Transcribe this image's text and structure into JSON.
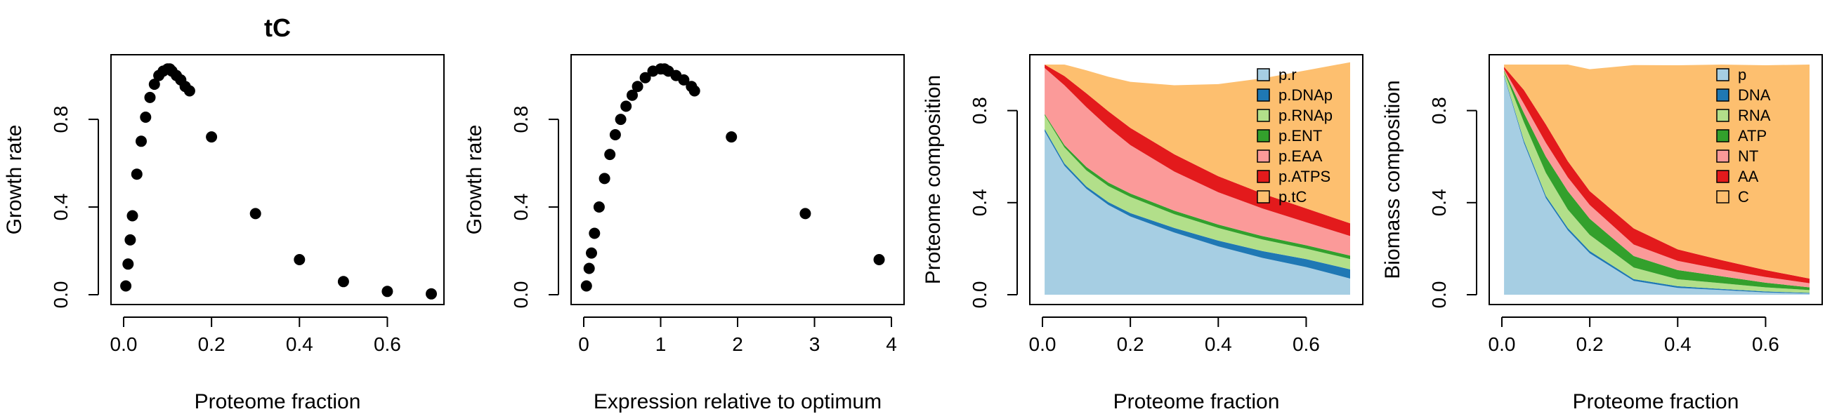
{
  "colors": {
    "points": "#000000",
    "axis": "#000000",
    "pal": [
      "#A6CEE3",
      "#1F78B4",
      "#B2DF8A",
      "#33A02C",
      "#FB9A99",
      "#E31A1C",
      "#FDBF6F"
    ]
  },
  "chart_data": [
    {
      "type": "scatter",
      "title": "tC",
      "xlabel": "Proteome fraction",
      "ylabel": "Growth rate",
      "xlim": [
        0,
        0.7
      ],
      "ylim": [
        0,
        1.05
      ],
      "xticks": [
        0,
        0.2,
        0.4,
        0.6
      ],
      "xtick_labels": [
        "0.0",
        "0.2",
        "0.4",
        "0.6"
      ],
      "yticks": [
        0,
        0.4,
        0.8
      ],
      "ytick_labels": [
        "0.0",
        "0.4",
        "0.8"
      ],
      "grid": false,
      "curve_x": [
        0.005,
        0.01,
        0.015,
        0.02,
        0.03,
        0.04,
        0.05,
        0.06,
        0.07,
        0.08,
        0.09,
        0.1,
        0.105,
        0.11,
        0.12,
        0.13,
        0.14,
        0.15
      ],
      "curve_y": [
        0.04,
        0.14,
        0.25,
        0.36,
        0.55,
        0.7,
        0.81,
        0.9,
        0.96,
        1.0,
        1.02,
        1.03,
        1.03,
        1.02,
        1.0,
        0.98,
        0.95,
        0.93
      ],
      "x": [
        0.2,
        0.3,
        0.4,
        0.5,
        0.6,
        0.7
      ],
      "y": [
        0.72,
        0.37,
        0.16,
        0.06,
        0.015,
        0.004
      ]
    },
    {
      "type": "scatter",
      "title": "",
      "xlabel": "Expression relative to optimum",
      "ylabel": "Growth rate",
      "xlim": [
        0,
        4
      ],
      "ylim": [
        0,
        1.05
      ],
      "xticks": [
        0,
        1,
        2,
        3,
        4
      ],
      "xtick_labels": [
        "0",
        "1",
        "2",
        "3",
        "4"
      ],
      "yticks": [
        0,
        0.4,
        0.8
      ],
      "ytick_labels": [
        "0.0",
        "0.4",
        "0.8"
      ],
      "grid": false,
      "curve_x": [
        0.035,
        0.07,
        0.1,
        0.14,
        0.2,
        0.27,
        0.34,
        0.41,
        0.48,
        0.55,
        0.63,
        0.7,
        0.8,
        0.9,
        1.0,
        1.05,
        1.1,
        1.2,
        1.3,
        1.4,
        1.44
      ],
      "curve_y": [
        0.04,
        0.12,
        0.19,
        0.28,
        0.4,
        0.53,
        0.64,
        0.73,
        0.8,
        0.86,
        0.91,
        0.95,
        0.99,
        1.02,
        1.03,
        1.03,
        1.02,
        1.0,
        0.98,
        0.95,
        0.93
      ],
      "x": [
        1.92,
        2.88,
        3.84
      ],
      "y": [
        0.72,
        0.37,
        0.16
      ]
    },
    {
      "type": "area",
      "title": "",
      "xlabel": "Proteome fraction",
      "ylabel": "Proteome composition",
      "xlim": [
        0,
        0.7
      ],
      "ylim": [
        0,
        1
      ],
      "xticks": [
        0,
        0.2,
        0.4,
        0.6
      ],
      "xtick_labels": [
        "0.0",
        "0.2",
        "0.4",
        "0.6"
      ],
      "yticks": [
        0,
        0.4,
        0.8
      ],
      "ytick_labels": [
        "0.0",
        "0.4",
        "0.8"
      ],
      "grid": false,
      "legend_position": "top-right",
      "x": [
        0.005,
        0.05,
        0.1,
        0.15,
        0.2,
        0.3,
        0.4,
        0.5,
        0.6,
        0.7
      ],
      "series": [
        {
          "name": "p.r",
          "values": [
            0.71,
            0.56,
            0.46,
            0.39,
            0.34,
            0.27,
            0.21,
            0.16,
            0.12,
            0.07
          ]
        },
        {
          "name": "p.DNAp",
          "values": [
            0.01,
            0.01,
            0.01,
            0.012,
            0.015,
            0.02,
            0.025,
            0.03,
            0.035,
            0.04
          ]
        },
        {
          "name": "p.RNAp",
          "values": [
            0.06,
            0.07,
            0.07,
            0.07,
            0.07,
            0.06,
            0.055,
            0.05,
            0.045,
            0.045
          ]
        },
        {
          "name": "p.ENT",
          "values": [
            0.005,
            0.01,
            0.015,
            0.015,
            0.015,
            0.015,
            0.015,
            0.015,
            0.015,
            0.015
          ]
        },
        {
          "name": "p.EAA",
          "values": [
            0.2,
            0.26,
            0.26,
            0.24,
            0.21,
            0.17,
            0.14,
            0.12,
            0.1,
            0.085
          ]
        },
        {
          "name": "p.ATPS",
          "values": [
            0.015,
            0.04,
            0.06,
            0.07,
            0.075,
            0.075,
            0.07,
            0.065,
            0.06,
            0.055
          ]
        },
        {
          "name": "p.tC",
          "values": [
            0.0,
            0.05,
            0.1,
            0.15,
            0.2,
            0.3,
            0.4,
            0.5,
            0.6,
            0.7
          ]
        }
      ]
    },
    {
      "type": "area",
      "title": "",
      "xlabel": "Proteome fraction",
      "ylabel": "Biomass composition",
      "xlim": [
        0,
        0.7
      ],
      "ylim": [
        0,
        1
      ],
      "xticks": [
        0,
        0.2,
        0.4,
        0.6
      ],
      "xtick_labels": [
        "0.0",
        "0.2",
        "0.4",
        "0.6"
      ],
      "yticks": [
        0,
        0.4,
        0.8
      ],
      "ytick_labels": [
        "0.0",
        "0.4",
        "0.8"
      ],
      "grid": false,
      "legend_position": "top-right",
      "x": [
        0.005,
        0.05,
        0.1,
        0.15,
        0.2,
        0.3,
        0.4,
        0.5,
        0.6,
        0.7
      ],
      "series": [
        {
          "name": "p",
          "values": [
            0.95,
            0.66,
            0.42,
            0.28,
            0.18,
            0.06,
            0.03,
            0.02,
            0.01,
            0.005
          ]
        },
        {
          "name": "DNA",
          "values": [
            0.005,
            0.01,
            0.01,
            0.01,
            0.01,
            0.008,
            0.007,
            0.005,
            0.004,
            0.003
          ]
        },
        {
          "name": "RNA",
          "values": [
            0.015,
            0.08,
            0.1,
            0.08,
            0.07,
            0.05,
            0.03,
            0.025,
            0.018,
            0.012
          ]
        },
        {
          "name": "ATP",
          "values": [
            0.005,
            0.04,
            0.07,
            0.08,
            0.07,
            0.05,
            0.04,
            0.03,
            0.02,
            0.012
          ]
        },
        {
          "name": "NT",
          "values": [
            0.005,
            0.04,
            0.06,
            0.06,
            0.06,
            0.05,
            0.04,
            0.03,
            0.025,
            0.018
          ]
        },
        {
          "name": "AA",
          "values": [
            0.01,
            0.06,
            0.08,
            0.07,
            0.06,
            0.07,
            0.05,
            0.04,
            0.03,
            0.02
          ]
        },
        {
          "name": "C",
          "values": [
            0.01,
            0.11,
            0.26,
            0.42,
            0.53,
            0.71,
            0.8,
            0.85,
            0.89,
            0.93
          ]
        }
      ]
    }
  ]
}
